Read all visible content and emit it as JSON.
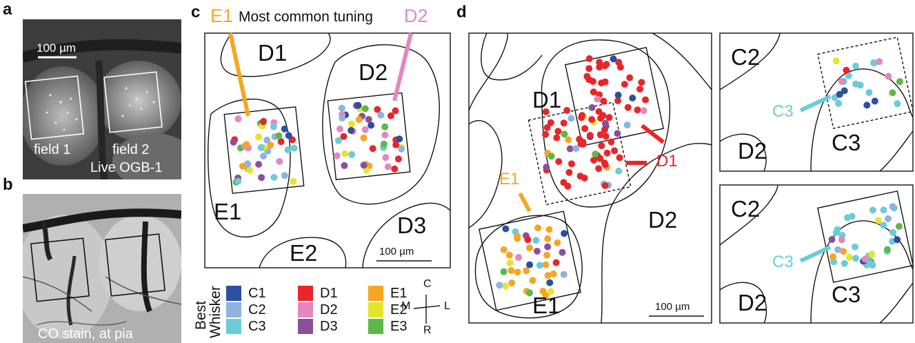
{
  "panels": {
    "a": {
      "letter": "a",
      "scalebar_label": "100 µm",
      "field1": "field 1",
      "field2": "field 2",
      "stain": "Live OGB-1"
    },
    "b": {
      "letter": "b",
      "stain": "CO stain, at pia"
    },
    "c": {
      "letter": "c",
      "title": "Most common tuning",
      "title_left": "E1",
      "title_right": "D2",
      "barrels": [
        "D1",
        "D2",
        "E1",
        "D3",
        "E2"
      ],
      "scalebar_label": "100 µm"
    },
    "d": {
      "letter": "d",
      "main_barrels": [
        "D1",
        "D2",
        "E1"
      ],
      "main_markers": [
        "E1",
        "D1"
      ],
      "scalebar_label": "100 µm",
      "inset_top": {
        "barrels": [
          "C2",
          "D2",
          "C3"
        ],
        "marker": "C3"
      },
      "inset_bottom": {
        "barrels": [
          "C2",
          "D2",
          "C3"
        ],
        "marker": "C3"
      }
    }
  },
  "legend": {
    "title_line1": "Best",
    "title_line2": "Whisker",
    "items": [
      {
        "label": "C1",
        "color": "#2c4fa0"
      },
      {
        "label": "C2",
        "color": "#8fb3e0"
      },
      {
        "label": "C3",
        "color": "#6ccbd9"
      },
      {
        "label": "D1",
        "color": "#e8262a"
      },
      {
        "label": "D2",
        "color": "#e487c0"
      },
      {
        "label": "D3",
        "color": "#8b4f9c"
      },
      {
        "label": "E1",
        "color": "#f6a623"
      },
      {
        "label": "E2",
        "color": "#e6e52a"
      },
      {
        "label": "E3",
        "color": "#5db848"
      }
    ]
  },
  "compass": {
    "top": "C",
    "bottom": "R",
    "left": "M",
    "right": "L"
  }
}
